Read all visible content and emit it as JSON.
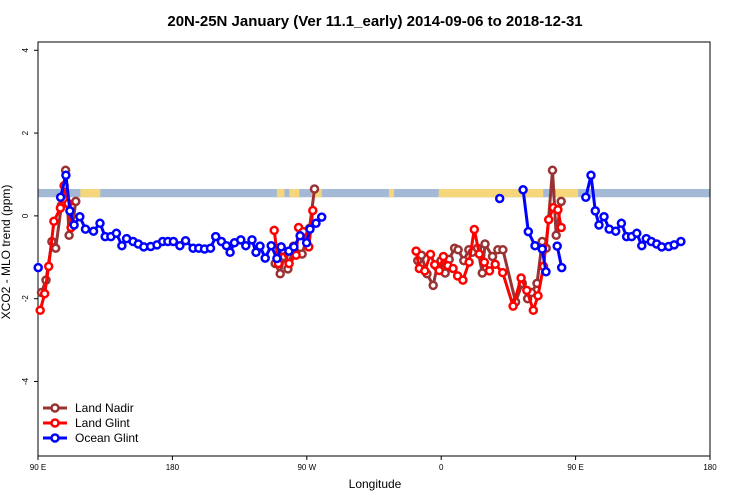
{
  "chart_data": {
    "type": "line",
    "title": "20N-25N January (Ver 11.1_early)   2014-09-06 to 2018-12-31",
    "xlabel": "Longitude",
    "ylabel": "XCO2 - MLO trend (ppm)",
    "xlim": [
      -90,
      180
    ],
    "ylim": [
      -5.8,
      4.2
    ],
    "x_ticks": [
      {
        "value": -90,
        "label": "90 E"
      },
      {
        "value": -36,
        "label": "180"
      },
      {
        "value": 18,
        "label": "90 W"
      },
      {
        "value": 72,
        "label": "0"
      },
      {
        "value": 126,
        "label": "90 E"
      },
      {
        "value": 180,
        "label": "180"
      }
    ],
    "y_ticks": [
      {
        "value": 4,
        "label": "4"
      },
      {
        "value": 2,
        "label": "2"
      },
      {
        "value": 0,
        "label": "0"
      },
      {
        "value": -2,
        "label": "-2"
      },
      {
        "value": -4,
        "label": "-4"
      }
    ],
    "grid": false,
    "legend_position": "bottom-left",
    "surface_band": {
      "y_range": [
        0.45,
        0.65
      ],
      "ocean_color": "#a4b9d6",
      "land_color": "#f5d67a",
      "land_segments": [
        [
          -73,
          -65
        ],
        [
          6,
          9
        ],
        [
          11,
          15
        ],
        [
          20,
          24
        ],
        [
          51,
          53
        ],
        [
          71,
          113
        ],
        [
          118,
          127
        ]
      ]
    },
    "series": [
      {
        "name": "Land Nadir",
        "color": "#993333",
        "segments": [
          [
            [
              -88.6,
              -1.85
            ],
            [
              -86.8,
              -1.55
            ],
            [
              -84.4,
              -0.62
            ],
            [
              -82.9,
              -0.78
            ],
            [
              -80.6,
              0.25
            ],
            [
              -78.9,
              1.1
            ],
            [
              -77.5,
              -0.47
            ],
            [
              -76.1,
              -0.22
            ],
            [
              -74.8,
              0.35
            ]
          ],
          [
            [
              5.3,
              -1.15
            ],
            [
              7.3,
              -1.4
            ],
            [
              8.8,
              -0.98
            ],
            [
              10.4,
              -1.28
            ],
            [
              12.7,
              -0.73
            ],
            [
              16.1,
              -0.92
            ],
            [
              19.1,
              -0.3
            ],
            [
              21.1,
              0.65
            ]
          ],
          [
            [
              62.6,
              -1.08
            ],
            [
              64.1,
              -0.95
            ],
            [
              66.3,
              -1.4
            ],
            [
              68.8,
              -1.68
            ],
            [
              70.3,
              -1.23
            ],
            [
              71.9,
              -1.08
            ],
            [
              73.6,
              -1.38
            ],
            [
              75.2,
              -1.05
            ],
            [
              77.4,
              -0.78
            ],
            [
              78.8,
              -0.82
            ],
            [
              81.1,
              -1.08
            ],
            [
              83.1,
              -0.82
            ],
            [
              84.5,
              -0.88
            ],
            [
              86.6,
              -0.78
            ],
            [
              88.5,
              -1.38
            ],
            [
              89.6,
              -0.68
            ],
            [
              92.6,
              -0.98
            ],
            [
              94.8,
              -0.82
            ],
            [
              96.8,
              -0.82
            ],
            [
              101.9,
              -2.08
            ],
            [
              104.6,
              -1.63
            ],
            [
              106.7,
              -2.0
            ],
            [
              108.3,
              -1.85
            ],
            [
              110.5,
              -1.63
            ],
            [
              112.6,
              -0.62
            ],
            [
              114.2,
              -0.78
            ],
            [
              116.7,
              1.1
            ],
            [
              118.2,
              -0.47
            ],
            [
              120.2,
              0.35
            ]
          ]
        ]
      },
      {
        "name": "Land Glint",
        "color": "#ff0000",
        "segments": [
          [
            [
              -89.1,
              -2.28
            ],
            [
              -87.3,
              -1.88
            ],
            [
              -85.7,
              -1.22
            ],
            [
              -83.6,
              -0.13
            ],
            [
              -81.0,
              0.19
            ],
            [
              -79.5,
              0.73
            ],
            [
              -77.9,
              0.3
            ],
            [
              -76.7,
              -0.28
            ]
          ],
          [
            [
              4.9,
              -0.35
            ],
            [
              6.6,
              -1.15
            ],
            [
              8.3,
              -0.83
            ],
            [
              10.9,
              -1.15
            ],
            [
              13.7,
              -0.95
            ],
            [
              14.7,
              -0.28
            ],
            [
              16.6,
              -0.38
            ],
            [
              18.8,
              -0.75
            ],
            [
              20.4,
              0.13
            ]
          ],
          [
            [
              61.9,
              -0.85
            ],
            [
              63.2,
              -1.27
            ],
            [
              65.4,
              -1.33
            ],
            [
              67.7,
              -0.93
            ],
            [
              69.4,
              -1.18
            ],
            [
              71.2,
              -1.32
            ],
            [
              72.9,
              -0.98
            ],
            [
              74.7,
              -1.2
            ],
            [
              76.8,
              -1.27
            ],
            [
              78.6,
              -1.45
            ],
            [
              80.7,
              -1.55
            ],
            [
              83.2,
              -1.12
            ],
            [
              85.3,
              -0.33
            ],
            [
              87.3,
              -0.92
            ],
            [
              89.3,
              -1.12
            ],
            [
              91.4,
              -1.33
            ],
            [
              93.7,
              -1.17
            ],
            [
              96.7,
              -1.37
            ],
            [
              100.9,
              -2.18
            ],
            [
              104.1,
              -1.5
            ],
            [
              106.4,
              -1.8
            ],
            [
              109.0,
              -2.28
            ],
            [
              110.9,
              -1.93
            ],
            [
              113.1,
              -1.22
            ],
            [
              115.2,
              -0.09
            ],
            [
              117.1,
              0.2
            ],
            [
              118.9,
              0.15
            ],
            [
              120.2,
              -0.28
            ]
          ]
        ]
      },
      {
        "name": "Ocean Glint",
        "color": "#0000ff",
        "segments": [
          [
            [
              -89.9,
              -1.25
            ]
          ],
          [
            [
              -80.9,
              0.45
            ],
            [
              -78.8,
              0.98
            ],
            [
              -77.2,
              0.12
            ],
            [
              -75.5,
              -0.22
            ],
            [
              -73.2,
              -0.02
            ],
            [
              -70.9,
              -0.32
            ],
            [
              -67.7,
              -0.37
            ],
            [
              -65.1,
              -0.18
            ],
            [
              -63.0,
              -0.5
            ],
            [
              -60.7,
              -0.5
            ],
            [
              -58.5,
              -0.42
            ],
            [
              -56.3,
              -0.72
            ],
            [
              -54.4,
              -0.55
            ],
            [
              -51.8,
              -0.62
            ],
            [
              -49.7,
              -0.68
            ],
            [
              -47.5,
              -0.75
            ],
            [
              -44.7,
              -0.74
            ],
            [
              -42.2,
              -0.7
            ],
            [
              -39.9,
              -0.62
            ],
            [
              -37.8,
              -0.62
            ],
            [
              -35.6,
              -0.62
            ],
            [
              -33.0,
              -0.72
            ],
            [
              -30.7,
              -0.6
            ],
            [
              -27.7,
              -0.78
            ],
            [
              -25.4,
              -0.78
            ],
            [
              -23.1,
              -0.8
            ],
            [
              -20.7,
              -0.78
            ],
            [
              -18.6,
              -0.5
            ],
            [
              -16.3,
              -0.62
            ],
            [
              -14.3,
              -0.72
            ],
            [
              -12.8,
              -0.88
            ],
            [
              -11.1,
              -0.65
            ],
            [
              -8.5,
              -0.58
            ],
            [
              -6.5,
              -0.72
            ],
            [
              -4.0,
              -0.58
            ],
            [
              -2.4,
              -0.88
            ],
            [
              -0.8,
              -0.73
            ],
            [
              1.3,
              -1.02
            ],
            [
              3.7,
              -0.72
            ],
            [
              6.0,
              -1.03
            ],
            [
              7.7,
              -0.75
            ],
            [
              10.8,
              -0.85
            ],
            [
              12.8,
              -0.75
            ],
            [
              15.3,
              -0.48
            ],
            [
              17.9,
              -0.65
            ],
            [
              19.3,
              -0.32
            ],
            [
              21.7,
              -0.18
            ],
            [
              24.0,
              -0.03
            ]
          ],
          [
            [
              95.5,
              0.42
            ]
          ],
          [
            [
              104.9,
              0.63
            ],
            [
              107.0,
              -0.38
            ],
            [
              109.7,
              -0.72
            ],
            [
              112.6,
              -0.8
            ],
            [
              114.1,
              -1.35
            ]
          ],
          [
            [
              118.6,
              -0.73
            ],
            [
              120.4,
              -1.25
            ]
          ],
          [
            [
              130.1,
              0.45
            ],
            [
              132.2,
              0.98
            ],
            [
              133.9,
              0.12
            ],
            [
              135.4,
              -0.22
            ],
            [
              137.4,
              -0.02
            ],
            [
              139.5,
              -0.32
            ],
            [
              142.1,
              -0.37
            ],
            [
              144.4,
              -0.18
            ],
            [
              146.5,
              -0.5
            ],
            [
              148.5,
              -0.5
            ],
            [
              150.6,
              -0.42
            ],
            [
              152.6,
              -0.72
            ],
            [
              154.4,
              -0.55
            ],
            [
              156.4,
              -0.62
            ],
            [
              158.6,
              -0.68
            ],
            [
              160.6,
              -0.75
            ],
            [
              163.4,
              -0.74
            ],
            [
              165.6,
              -0.7
            ],
            [
              168.3,
              -0.62
            ]
          ]
        ]
      }
    ]
  }
}
